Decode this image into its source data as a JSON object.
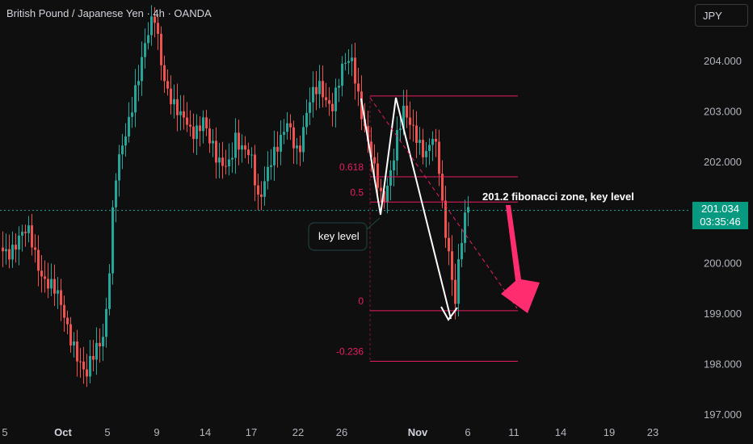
{
  "header": {
    "title": "British Pound / Japanese Yen · 4h · OANDA"
  },
  "toolbar": {
    "currency": "JPY"
  },
  "last_price": {
    "price": "201.034",
    "countdown": "03:35:46"
  },
  "colors": {
    "up": "#26a69a",
    "down": "#ef5350",
    "fib": "#e91e63",
    "arrow": "#ff2d6f",
    "price_line": "#26a69a",
    "background": "#0f0f0f"
  },
  "chart_data": {
    "type": "candlestick",
    "symbol": "GBPJPY",
    "timeframe": "4h",
    "ylim": [
      196.8,
      205.0
    ],
    "y_ticks": [
      {
        "value": 204.0,
        "label": "204.000"
      },
      {
        "value": 203.0,
        "label": "203.000"
      },
      {
        "value": 202.0,
        "label": "202.000"
      },
      {
        "value": 200.0,
        "label": "200.000"
      },
      {
        "value": 199.0,
        "label": "199.000"
      },
      {
        "value": 198.0,
        "label": "198.000"
      },
      {
        "value": 197.0,
        "label": "197.000"
      }
    ],
    "x_ticks": [
      "5",
      "Oct",
      "5",
      "9",
      "14",
      "17",
      "22",
      "26",
      "Nov",
      "6",
      "11",
      "14",
      "19",
      "23"
    ],
    "price_path": [
      [
        0,
        200.3
      ],
      [
        35,
        200.5
      ],
      [
        50,
        199.9
      ],
      [
        70,
        199.2
      ],
      [
        90,
        198.5
      ],
      [
        105,
        197.6
      ],
      [
        118,
        198.3
      ],
      [
        128,
        198.8
      ],
      [
        135,
        200.2
      ],
      [
        140,
        201.5
      ],
      [
        155,
        202.5
      ],
      [
        165,
        203.5
      ],
      [
        175,
        204.2
      ],
      [
        183,
        204.5
      ],
      [
        190,
        204.7
      ],
      [
        200,
        203.8
      ],
      [
        210,
        203.4
      ],
      [
        222,
        202.8
      ],
      [
        235,
        202.5
      ],
      [
        250,
        203.0
      ],
      [
        258,
        202.4
      ],
      [
        268,
        201.8
      ],
      [
        280,
        202.0
      ],
      [
        290,
        202.6
      ],
      [
        298,
        202.2
      ],
      [
        310,
        201.9
      ],
      [
        318,
        201.3
      ],
      [
        330,
        202.0
      ],
      [
        345,
        202.2
      ],
      [
        355,
        202.8
      ],
      [
        368,
        202.3
      ],
      [
        380,
        203.0
      ],
      [
        395,
        203.5
      ],
      [
        410,
        203.2
      ],
      [
        425,
        203.8
      ],
      [
        435,
        204.0
      ],
      [
        445,
        203.2
      ],
      [
        455,
        202.3
      ],
      [
        463,
        201.6
      ],
      [
        472,
        201.1
      ],
      [
        480,
        201.8
      ],
      [
        490,
        202.6
      ],
      [
        498,
        202.9
      ],
      [
        505,
        202.6
      ],
      [
        515,
        202.5
      ],
      [
        525,
        202.3
      ],
      [
        535,
        202.5
      ],
      [
        542,
        201.7
      ],
      [
        548,
        200.6
      ],
      [
        555,
        200.2
      ],
      [
        561,
        199.3
      ],
      [
        566,
        200.1
      ],
      [
        572,
        200.8
      ],
      [
        580,
        201.05
      ]
    ],
    "fibonacci": [
      {
        "label": "",
        "value": 203.3
      },
      {
        "label": "0.618",
        "value": 201.7
      },
      {
        "label": "0.5",
        "value": 201.2
      },
      {
        "label": "0",
        "value": 199.05
      },
      {
        "label": "-0.236",
        "value": 198.05
      }
    ],
    "annotations": {
      "zone": "201.2 fibonacci zone, key level",
      "key_level": "key level"
    }
  }
}
